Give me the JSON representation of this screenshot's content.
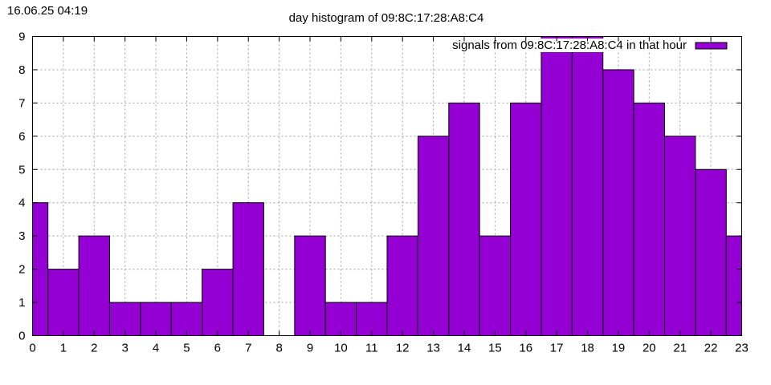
{
  "timestamp": "16.06.25 04:19",
  "chart_data": {
    "type": "bar",
    "title": "day histogram of 09:8C:17:28:A8:C4",
    "xlabel": "",
    "ylabel": "",
    "x": [
      0,
      1,
      2,
      3,
      4,
      5,
      6,
      7,
      8,
      9,
      10,
      11,
      12,
      13,
      14,
      15,
      16,
      17,
      18,
      19,
      20,
      21,
      22,
      23
    ],
    "categories": [
      "0",
      "1",
      "2",
      "3",
      "4",
      "5",
      "6",
      "7",
      "8",
      "9",
      "10",
      "11",
      "12",
      "13",
      "14",
      "15",
      "16",
      "17",
      "18",
      "19",
      "20",
      "21",
      "22",
      "23"
    ],
    "series": [
      {
        "name": "signals from 09:8C:17:28:A8:C4 in that hour",
        "values": [
          4,
          2,
          3,
          1,
          1,
          1,
          2,
          4,
          0,
          3,
          1,
          1,
          3,
          6,
          7,
          3,
          7,
          9,
          9,
          8,
          7,
          6,
          5,
          3
        ]
      }
    ],
    "xlim": [
      0,
      23
    ],
    "ylim": [
      0,
      9
    ],
    "y_ticks": [
      "0",
      "1",
      "2",
      "3",
      "4",
      "5",
      "6",
      "7",
      "8",
      "9"
    ],
    "grid": true,
    "legend_position": "top-right",
    "colors": {
      "bar_fill": "#9400d3",
      "bar_stroke": "#000000",
      "grid": "#a0a0a0",
      "frame": "#000000"
    }
  }
}
